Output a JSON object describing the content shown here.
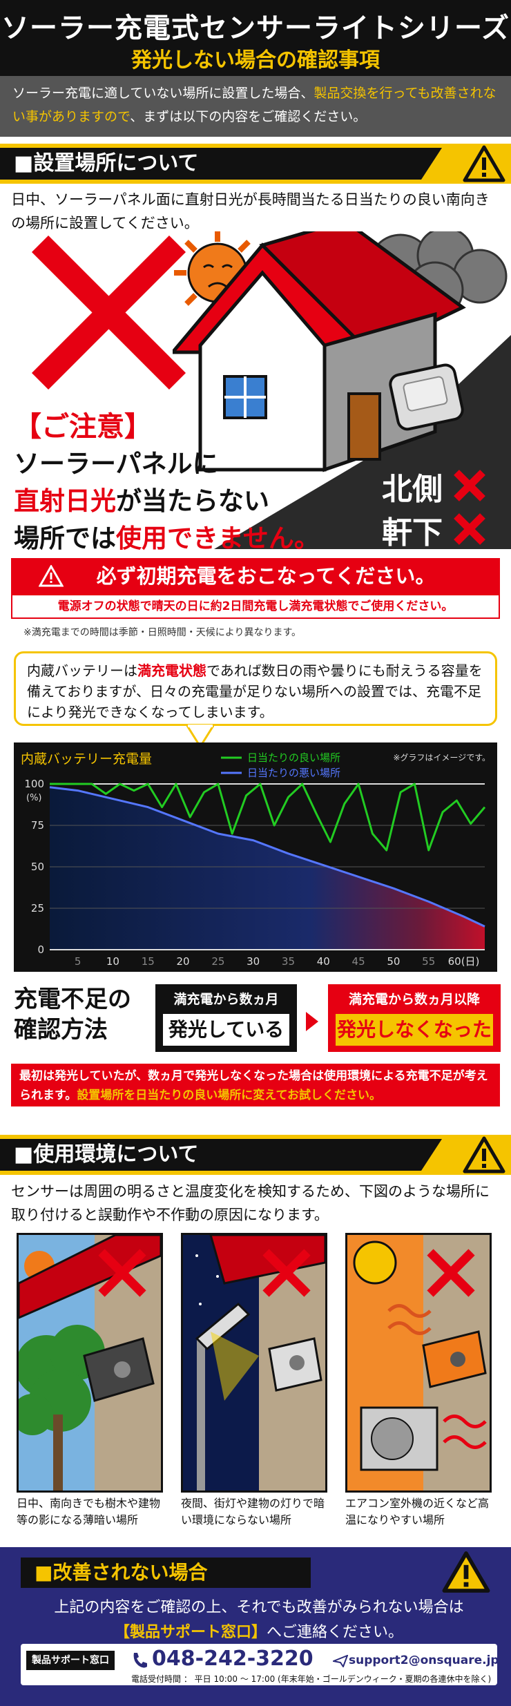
{
  "header": {
    "title": "ソーラー充電式センサーライトシリーズ",
    "subtitle": "発光しない場合の確認事項"
  },
  "intro": {
    "part1": "ソーラー充電に適していない場所に設置した場合、",
    "highlight": "製品交換を行っても改善されない事がありますので",
    "part2": "、まずは以下の内容をご確認ください。"
  },
  "section1": {
    "label": "■設置場所について",
    "text": "日中、ソーラーパネル面に直射日光が長時間当たる日当たりの良い南向きの場所に設置してください。"
  },
  "caution": {
    "title": "【ご注意】",
    "line1": "ソーラーパネルに",
    "line2a": "直射日光",
    "line2b": "が当たらない",
    "line3a": "場所では",
    "line3b": "使用できません。"
  },
  "side_labels": {
    "north": "北側",
    "eaves": "軒下"
  },
  "initial_charge": {
    "title": "必ず初期充電をおこなってください。",
    "sub": "電源オフの状態で晴天の日に約2日間充電し満充電状態でご使用ください。",
    "note": "※満充電までの時間は季節・日照時間・天候により異なります。"
  },
  "speech": {
    "a": "内蔵バッテリーは",
    "b": "満充電状態",
    "c": "であれば数日の雨や曇りにも耐えうる容量を備えておりますが、日々の充電量が足りない場所への設置では、充電不足により発光できなくなってしまいます。"
  },
  "chart_data": {
    "type": "line",
    "title": "内蔵バッテリー充電量",
    "note": "※グラフはイメージです。",
    "ylabel": "(%)",
    "ylim": [
      0,
      100
    ],
    "xlim": [
      1,
      63
    ],
    "yticks": [
      0,
      25,
      50,
      75,
      100
    ],
    "xticks": [
      5,
      10,
      15,
      20,
      25,
      30,
      35,
      40,
      45,
      50,
      55,
      60
    ],
    "xlabel_last": "60(日)",
    "legend_position": "top-center",
    "series": [
      {
        "name": "日当たりの良い場所",
        "color": "#22cc22",
        "x": [
          1,
          3,
          5,
          7,
          9,
          11,
          13,
          15,
          17,
          19,
          21,
          23,
          25,
          27,
          29,
          31,
          33,
          35,
          37,
          39,
          41,
          43,
          45,
          47,
          49,
          51,
          53,
          55,
          57,
          59,
          61,
          63
        ],
        "y": [
          100,
          100,
          100,
          100,
          94,
          100,
          96,
          100,
          86,
          100,
          80,
          95,
          100,
          70,
          93,
          100,
          75,
          92,
          100,
          82,
          65,
          88,
          100,
          70,
          60,
          95,
          100,
          60,
          83,
          90,
          76,
          86
        ]
      },
      {
        "name": "日当たりの悪い場所",
        "color": "#5577ff",
        "x": [
          1,
          5,
          10,
          15,
          20,
          25,
          30,
          35,
          40,
          45,
          50,
          55,
          60,
          63
        ],
        "y": [
          98,
          96,
          91,
          86,
          78,
          70,
          66,
          58,
          51,
          44,
          37,
          29,
          20,
          14
        ]
      }
    ]
  },
  "check": {
    "heading1": "充電不足の",
    "heading2": "確認方法",
    "box1_top": "満充電から数ヵ月",
    "box1_bottom": "発光している",
    "box2_top": "満充電から数ヵ月以降",
    "box2_bottom": "発光しなくなった",
    "result_a": "最初は発光していたが、数ヵ月で発光しなくなった場合は使用環境による充電不足が考えられます。",
    "result_b": "設置場所を日当たりの良い場所に変えてお試しください。"
  },
  "section2": {
    "label": "■使用環境について",
    "text": "センサーは周囲の明るさと温度変化を検知するため、下図のような場所に取り付けると誤動作や不作動の原因になります。"
  },
  "scenes": [
    {
      "caption": "日中、南向きでも樹木や建物等の影になる薄暗い場所"
    },
    {
      "caption": "夜間、街灯や建物の灯りで暗い環境にならない場所"
    },
    {
      "caption": "エアコン室外機の近くなど高温になりやすい場所"
    }
  ],
  "footer": {
    "label": "■改善されない場合",
    "text_a": "上記の内容をご確認の上、それでも改善がみられない場合は",
    "text_b": "【製品サポート窓口】",
    "text_c": "へご連絡ください。",
    "tag": "製品サポート窓口",
    "phone": "048-242-3220",
    "email": "support2@onsquare.jp",
    "hours": "電話受付時間 ： 平日 10:00 ～ 17:00 (年末年始・ゴールデンウィーク・夏期の各連休中を除く)"
  },
  "colors": {
    "yellow": "#f5c400",
    "red": "#e60012",
    "navy": "#2a2a7a"
  }
}
